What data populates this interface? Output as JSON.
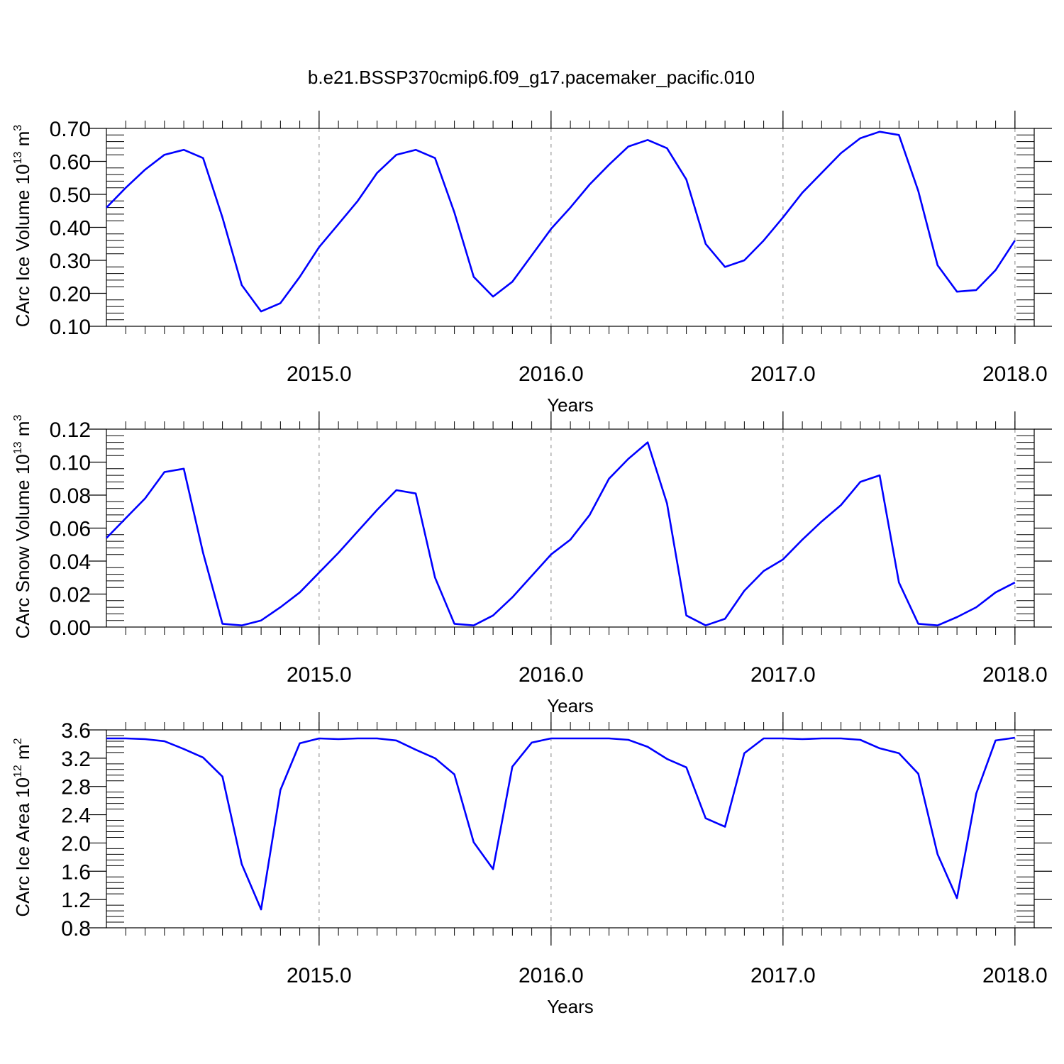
{
  "title": "b.e21.BSSP370cmip6.f09_g17.pacemaker_pacific.010",
  "colors": {
    "line": "#0000ff",
    "frame": "#000000",
    "grid": "#999999"
  },
  "chart_data": [
    {
      "type": "line",
      "ylabel_main": "CArc Ice Volume 10",
      "ylabel_exp": "13",
      "ylabel_unit": " m",
      "ylabel_unit_exp": "3",
      "xlabel": "Years",
      "xlim": [
        2014.083,
        2018.083
      ],
      "ylim": [
        0.1,
        0.7
      ],
      "yticks": [
        0.1,
        0.2,
        0.3,
        0.4,
        0.5,
        0.6,
        0.7
      ],
      "ytick_labels": [
        "0.10",
        "0.20",
        "0.30",
        "0.40",
        "0.50",
        "0.60",
        "0.70"
      ],
      "xticks": [
        2015.0,
        2016.0,
        2017.0,
        2018.0
      ],
      "xtick_labels": [
        "2015.0",
        "2016.0",
        "2017.0",
        "2018.0"
      ],
      "grid": "vertical dashed at major x ticks",
      "x_start": 2014.0833,
      "x_step": 0.08333,
      "values": [
        0.46,
        0.52,
        0.575,
        0.62,
        0.635,
        0.61,
        0.43,
        0.225,
        0.145,
        0.17,
        0.25,
        0.34,
        0.41,
        0.48,
        0.565,
        0.62,
        0.635,
        0.61,
        0.445,
        0.25,
        0.19,
        0.235,
        0.315,
        0.395,
        0.46,
        0.53,
        0.59,
        0.645,
        0.665,
        0.64,
        0.545,
        0.35,
        0.28,
        0.3,
        0.36,
        0.43,
        0.505,
        0.565,
        0.625,
        0.67,
        0.69,
        0.68,
        0.51,
        0.285,
        0.205,
        0.21,
        0.27,
        0.36
      ]
    },
    {
      "type": "line",
      "ylabel_main": "CArc Snow Volume 10",
      "ylabel_exp": "13",
      "ylabel_unit": " m",
      "ylabel_unit_exp": "3",
      "xlabel": "Years",
      "xlim": [
        2014.083,
        2018.083
      ],
      "ylim": [
        0.0,
        0.12
      ],
      "yticks": [
        0.0,
        0.02,
        0.04,
        0.06,
        0.08,
        0.1,
        0.12
      ],
      "ytick_labels": [
        "0.00",
        "0.02",
        "0.04",
        "0.06",
        "0.08",
        "0.10",
        "0.12"
      ],
      "xticks": [
        2015.0,
        2016.0,
        2017.0,
        2018.0
      ],
      "xtick_labels": [
        "2015.0",
        "2016.0",
        "2017.0",
        "2018.0"
      ],
      "grid": "vertical dashed at major x ticks",
      "x_start": 2014.0833,
      "x_step": 0.08333,
      "values": [
        0.054,
        0.066,
        0.078,
        0.094,
        0.096,
        0.045,
        0.002,
        0.001,
        0.004,
        0.012,
        0.021,
        0.033,
        0.045,
        0.058,
        0.071,
        0.083,
        0.081,
        0.03,
        0.002,
        0.001,
        0.007,
        0.018,
        0.031,
        0.044,
        0.053,
        0.068,
        0.09,
        0.102,
        0.112,
        0.075,
        0.007,
        0.001,
        0.005,
        0.022,
        0.034,
        0.041,
        0.053,
        0.064,
        0.074,
        0.088,
        0.092,
        0.027,
        0.002,
        0.001,
        0.006,
        0.012,
        0.021,
        0.027
      ]
    },
    {
      "type": "line",
      "ylabel_main": "CArc Ice Area 10",
      "ylabel_exp": "12",
      "ylabel_unit": " m",
      "ylabel_unit_exp": "2",
      "xlabel": "Years",
      "xlim": [
        2014.083,
        2018.083
      ],
      "ylim": [
        0.8,
        3.6
      ],
      "yticks": [
        0.8,
        1.2,
        1.6,
        2.0,
        2.4,
        2.8,
        3.2,
        3.6
      ],
      "ytick_labels": [
        "0.8",
        "1.2",
        "1.6",
        "2.0",
        "2.4",
        "2.8",
        "3.2",
        "3.6"
      ],
      "xticks": [
        2015.0,
        2016.0,
        2017.0,
        2018.0
      ],
      "xtick_labels": [
        "2015.0",
        "2016.0",
        "2017.0",
        "2018.0"
      ],
      "grid": "vertical dashed at major x ticks",
      "x_start": 2014.0833,
      "x_step": 0.08333,
      "values": [
        3.48,
        3.48,
        3.47,
        3.44,
        3.33,
        3.21,
        2.94,
        1.7,
        1.06,
        2.75,
        3.41,
        3.48,
        3.47,
        3.48,
        3.48,
        3.45,
        3.32,
        3.2,
        2.97,
        2.01,
        1.63,
        3.08,
        3.42,
        3.48,
        3.48,
        3.48,
        3.48,
        3.46,
        3.36,
        3.19,
        3.07,
        2.35,
        2.23,
        3.27,
        3.48,
        3.48,
        3.47,
        3.48,
        3.48,
        3.46,
        3.34,
        3.27,
        2.98,
        1.84,
        1.22,
        2.7,
        3.45,
        3.49
      ]
    }
  ]
}
